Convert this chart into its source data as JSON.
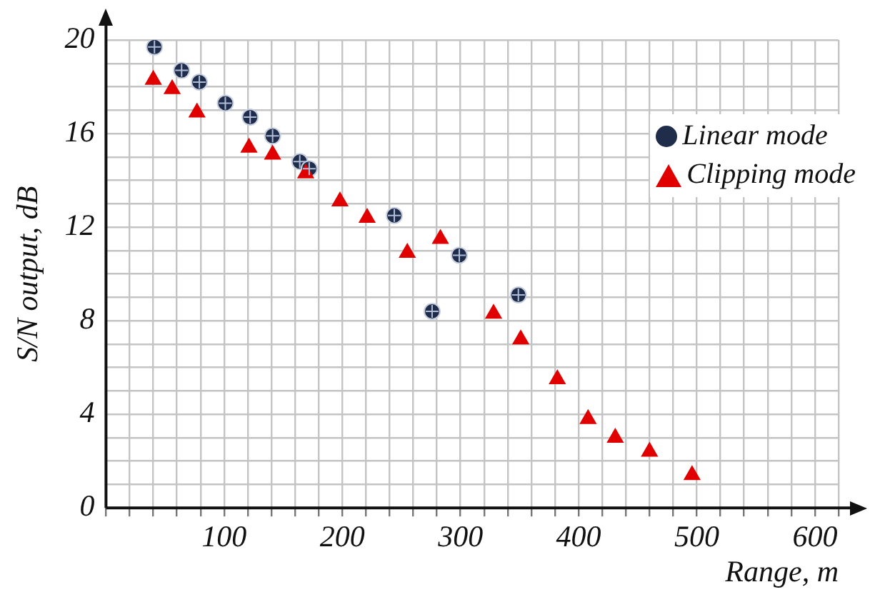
{
  "chart_data": {
    "type": "scatter",
    "xlabel": "Range, m",
    "ylabel": "S/N output, dB",
    "xlim": [
      0,
      620
    ],
    "ylim": [
      0,
      20
    ],
    "xticks": [
      {
        "value": 0,
        "label": null
      },
      {
        "value": 20,
        "label": null
      },
      {
        "value": 40,
        "label": null
      },
      {
        "value": 60,
        "label": null
      },
      {
        "value": 80,
        "label": null
      },
      100,
      {
        "value": 120,
        "label": null
      },
      {
        "value": 140,
        "label": null
      },
      {
        "value": 160,
        "label": null
      },
      {
        "value": 180,
        "label": null
      },
      200,
      {
        "value": 220,
        "label": null
      },
      {
        "value": 240,
        "label": null
      },
      {
        "value": 260,
        "label": null
      },
      {
        "value": 280,
        "label": null
      },
      300,
      {
        "value": 320,
        "label": null
      },
      {
        "value": 340,
        "label": null
      },
      {
        "value": 360,
        "label": null
      },
      {
        "value": 380,
        "label": null
      },
      400,
      {
        "value": 420,
        "label": null
      },
      {
        "value": 440,
        "label": null
      },
      {
        "value": 460,
        "label": null
      },
      {
        "value": 480,
        "label": null
      },
      500,
      {
        "value": 520,
        "label": null
      },
      {
        "value": 540,
        "label": null
      },
      {
        "value": 560,
        "label": null
      },
      {
        "value": 580,
        "label": null
      },
      600,
      {
        "value": 620,
        "label": null
      }
    ],
    "yticks": [
      0,
      {
        "value": 1,
        "label": null
      },
      {
        "value": 2,
        "label": null
      },
      {
        "value": 3,
        "label": null
      },
      4,
      {
        "value": 5,
        "label": null
      },
      {
        "value": 6,
        "label": null
      },
      {
        "value": 7,
        "label": null
      },
      8,
      {
        "value": 9,
        "label": null
      },
      {
        "value": 10,
        "label": null
      },
      {
        "value": 11,
        "label": null
      },
      12,
      {
        "value": 13,
        "label": null
      },
      {
        "value": 14,
        "label": null
      },
      {
        "value": 15,
        "label": null
      },
      16,
      {
        "value": 17,
        "label": null
      },
      {
        "value": 18,
        "label": null
      },
      {
        "value": 19,
        "label": null
      },
      20
    ],
    "grid": true,
    "legend": "top right",
    "series": [
      {
        "name": "Linear mode",
        "color": "#1f2d4a",
        "marker": "circle",
        "x": [
          41,
          64,
          79,
          101,
          122,
          141,
          164,
          172,
          244,
          276,
          299,
          349
        ],
        "values": [
          19.7,
          18.7,
          18.2,
          17.3,
          16.7,
          15.9,
          14.8,
          14.5,
          12.5,
          8.4,
          10.8,
          9.1
        ]
      },
      {
        "name": "Clipping mode",
        "color": "#e00000",
        "marker": "triangle",
        "x": [
          40,
          56,
          77,
          121,
          141,
          169,
          198,
          221,
          255,
          283,
          328,
          351,
          382,
          408,
          431,
          460,
          496
        ],
        "values": [
          18.3,
          17.9,
          16.9,
          15.4,
          15.1,
          14.3,
          13.1,
          12.4,
          10.9,
          11.5,
          8.3,
          7.2,
          5.5,
          3.8,
          3.0,
          2.4,
          1.4
        ]
      }
    ]
  }
}
